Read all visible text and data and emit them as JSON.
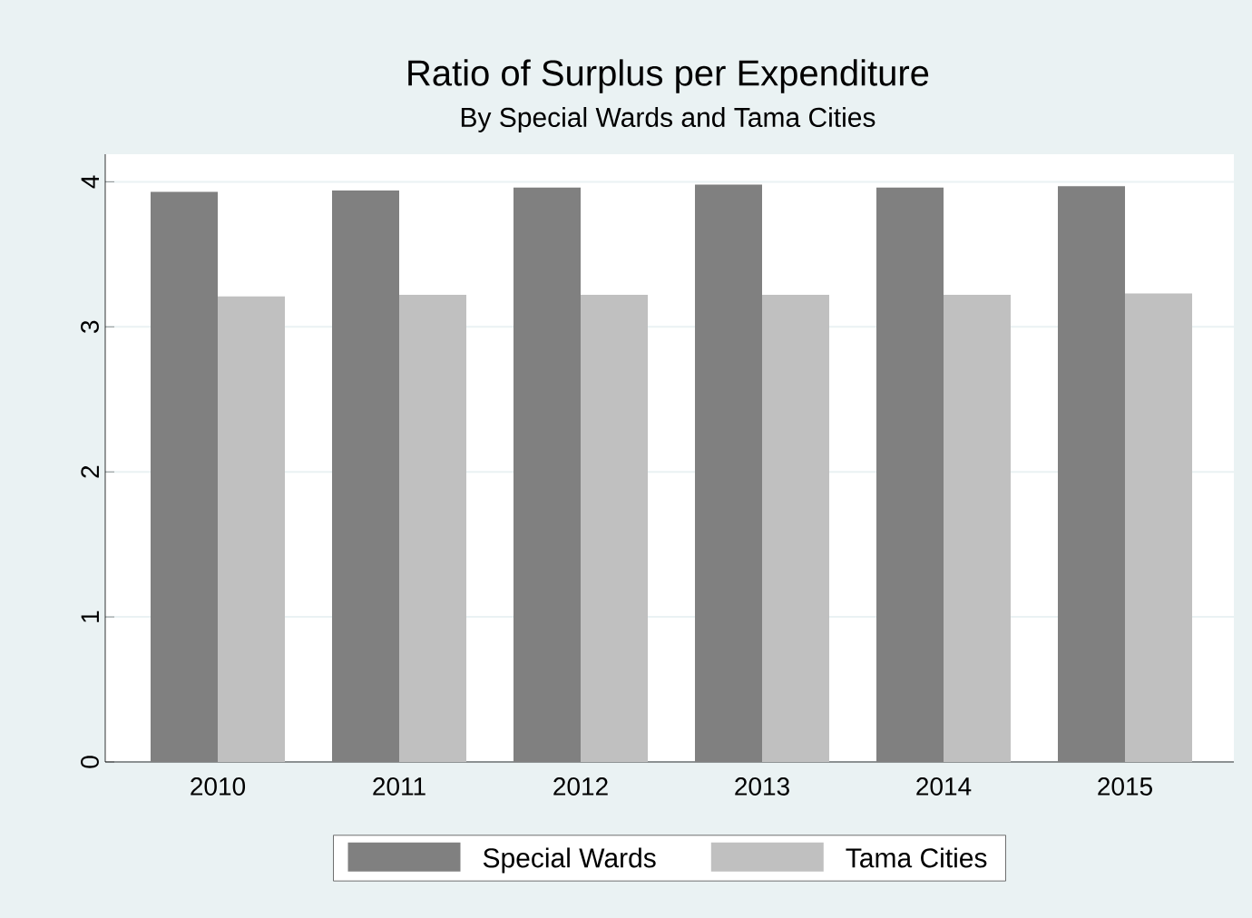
{
  "chart_data": {
    "type": "bar",
    "title": "Ratio of Surplus per Expenditure",
    "subtitle": "By Special Wards and Tama Cities",
    "categories": [
      "2010",
      "2011",
      "2012",
      "2013",
      "2014",
      "2015"
    ],
    "series": [
      {
        "name": "Special Wards",
        "color": "#808080",
        "values": [
          3.93,
          3.94,
          3.96,
          3.98,
          3.96,
          3.97
        ]
      },
      {
        "name": "Tama Cities",
        "color": "#c0c0c0",
        "values": [
          3.21,
          3.22,
          3.22,
          3.22,
          3.22,
          3.23
        ]
      }
    ],
    "ylim": [
      0,
      4.19
    ],
    "yticks": [
      0,
      1,
      2,
      3,
      4
    ],
    "grid": "y",
    "legend": "bottom"
  }
}
